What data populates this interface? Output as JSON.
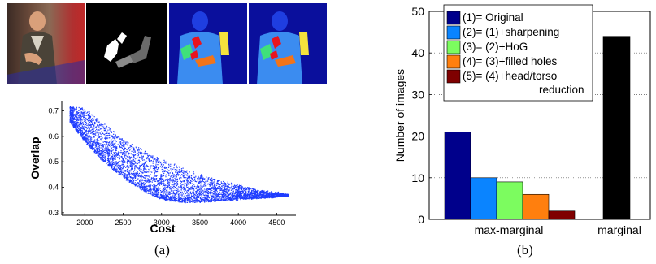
{
  "panels": {
    "a_caption": "(a)",
    "b_caption": "(b)"
  },
  "images": [
    {
      "name": "photo-frame",
      "kind": "video frame of a person signing in front of a red backdrop"
    },
    {
      "name": "pose-mask",
      "kind": "grayscale segmentation mask"
    },
    {
      "name": "segmentation-result-1",
      "kind": "colour-coded body part segmentation"
    },
    {
      "name": "segmentation-result-2",
      "kind": "colour-coded body part segmentation"
    }
  ],
  "colors": {
    "scatter": "#1f3cff",
    "seg_background": "#0a0f9c",
    "seg_torso": "#3b8cf0",
    "seg_head": "#1f3ee0",
    "seg_red": "#e8141e",
    "seg_green": "#3fe07a",
    "seg_orange": "#f2741a",
    "seg_yellow": "#f5e23c",
    "bar_original": "#00008b",
    "bar_sharpening": "#0a84ff",
    "bar_hog": "#7cfc5f",
    "bar_filled": "#ff7f0e",
    "bar_headtorso": "#7f0000",
    "bar_marginal": "#000000"
  },
  "chart_data": [
    {
      "type": "scatter",
      "title": "",
      "xlabel": "Cost",
      "ylabel": "Overlap",
      "xlim": [
        1700,
        4750
      ],
      "ylim": [
        0.29,
        0.74
      ],
      "xticks": [
        "2000",
        "2500",
        "3000",
        "3500",
        "4000",
        "4500"
      ],
      "yticks": [
        "0.3",
        "0.4",
        "0.5",
        "0.6",
        "0.7"
      ],
      "grid": false,
      "description_points": "dense cloud of thousands of points",
      "envelope": {
        "x": [
          1800,
          2000,
          2250,
          2500,
          2750,
          3000,
          3250,
          3500,
          3750,
          4000,
          4250,
          4500,
          4650
        ],
        "upper": [
          0.72,
          0.71,
          0.65,
          0.59,
          0.55,
          0.51,
          0.48,
          0.45,
          0.43,
          0.41,
          0.39,
          0.38,
          0.37
        ],
        "lower": [
          0.66,
          0.58,
          0.5,
          0.44,
          0.39,
          0.355,
          0.345,
          0.345,
          0.35,
          0.355,
          0.36,
          0.365,
          0.37
        ]
      }
    },
    {
      "type": "bar",
      "title": "",
      "xlabel": "",
      "ylabel": "Number of images",
      "ylim": [
        0,
        50
      ],
      "yticks": [
        "0",
        "10",
        "20",
        "30",
        "40",
        "50"
      ],
      "grid": true,
      "legend_position": "top-left",
      "groups": [
        {
          "label": "max-marginal",
          "bars": [
            {
              "name": "(1)= Original",
              "value": 21
            },
            {
              "name": "(2)= (1)+sharpening",
              "value": 10
            },
            {
              "name": "(3)= (2)+HoG",
              "value": 9
            },
            {
              "name": "(4)= (3)+filled holes",
              "value": 6
            },
            {
              "name": "(5)= (4)+head/torso reduction",
              "value": 2
            }
          ]
        },
        {
          "label": "marginal",
          "bars": [
            {
              "name": "marginal",
              "value": 44
            }
          ]
        }
      ],
      "legend": [
        {
          "line1": "(1)= Original",
          "line2": ""
        },
        {
          "line1": "(2)= (1)+sharpening",
          "line2": ""
        },
        {
          "line1": "(3)= (2)+HoG",
          "line2": ""
        },
        {
          "line1": "(4)= (3)+filled holes",
          "line2": ""
        },
        {
          "line1": "(5)= (4)+head/torso",
          "line2": "reduction"
        }
      ]
    }
  ]
}
